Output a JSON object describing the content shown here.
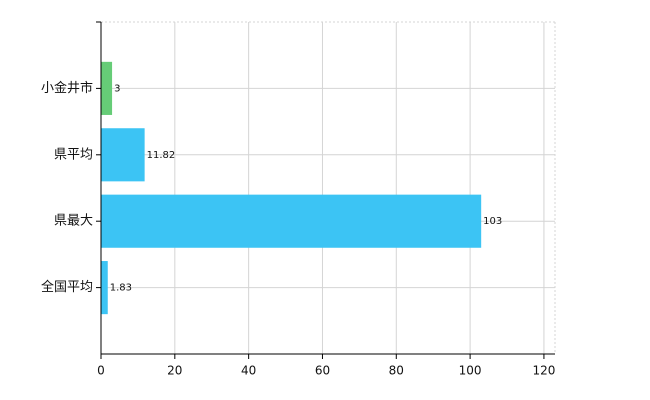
{
  "chart_data": {
    "type": "barh",
    "categories": [
      "小金井市",
      "県平均",
      "県最大",
      "全国平均"
    ],
    "values": [
      3,
      11.82,
      103,
      1.83
    ],
    "colors": [
      "#66cc77",
      "#3cc4f4",
      "#3cc4f4",
      "#3cc4f4"
    ],
    "xlim": [
      0,
      123
    ],
    "xticks": [
      0,
      20,
      40,
      60,
      80,
      100,
      120
    ],
    "grid": true
  }
}
